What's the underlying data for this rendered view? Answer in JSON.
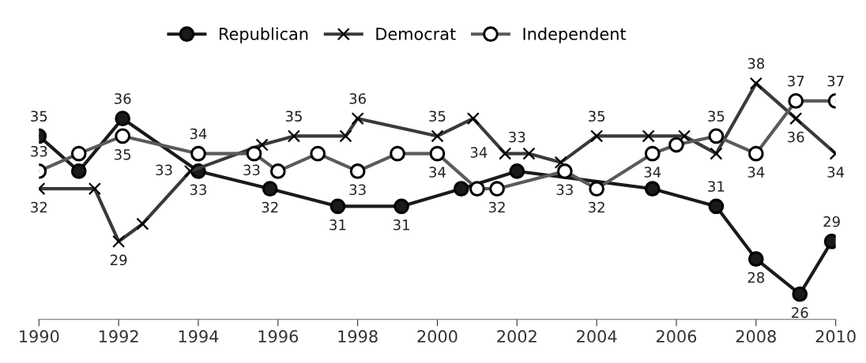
{
  "chart_data": {
    "type": "line",
    "xlim": [
      1990,
      2010
    ],
    "xticks": [
      1990,
      1992,
      1994,
      1996,
      1998,
      2000,
      2002,
      2004,
      2006,
      2008,
      2010
    ],
    "tick_labels": "x",
    "grid": false,
    "legend": "top",
    "series": [
      {
        "name": "Republican",
        "color": "#1a1a1a",
        "marker": "circle",
        "x": [
          1990,
          1991,
          1992.1,
          1994,
          1995.8,
          1997.5,
          1999.1,
          2000.6,
          2002,
          2005.4,
          2007,
          2008,
          2009.1,
          2009.9
        ],
        "values": [
          35,
          33,
          36,
          33,
          32,
          31,
          31,
          32,
          33,
          32,
          31,
          28,
          26,
          29
        ],
        "value_labels": [
          "35",
          null,
          "36",
          "33",
          "32",
          "31",
          "31",
          null,
          "33",
          null,
          "31",
          "28",
          "26",
          "29"
        ]
      },
      {
        "name": "Democrat",
        "color": "#3a3a3a",
        "marker": "cross",
        "x": [
          1990,
          1991.4,
          1992,
          1992.6,
          1993.8,
          1995.6,
          1996.4,
          1997.7,
          1998,
          2000,
          2000.9,
          2001.7,
          2002.3,
          2003.1,
          2004,
          2005.3,
          2006.2,
          2007,
          2008,
          2009,
          2010
        ],
        "values": [
          32,
          32,
          29,
          30,
          33,
          34.5,
          35,
          35,
          36,
          35,
          36,
          34,
          34,
          33.5,
          35,
          35,
          35,
          34,
          38,
          36,
          34
        ],
        "value_labels": [
          "32",
          null,
          "29",
          null,
          "33",
          null,
          "35",
          null,
          "36",
          "35",
          null,
          "34",
          null,
          null,
          "35",
          null,
          null,
          null,
          "38",
          "36",
          "34"
        ]
      },
      {
        "name": "Independent",
        "color": "#5a5a5a",
        "marker": "circle",
        "x": [
          1990,
          1991,
          1992.1,
          1994,
          1995.4,
          1996,
          1997,
          1998,
          1999,
          2000,
          2001,
          2001.5,
          2003.2,
          2004,
          2005.4,
          2006,
          2007,
          2008,
          2009,
          2010
        ],
        "values": [
          33,
          34,
          35,
          34,
          34,
          33,
          34,
          33,
          34,
          34,
          32,
          32,
          33,
          32,
          34,
          34.5,
          35,
          34,
          37,
          37
        ],
        "value_labels": [
          "33",
          null,
          "35",
          "34",
          null,
          "33",
          null,
          "33",
          null,
          "34",
          null,
          "32",
          "33",
          "32",
          "34",
          null,
          "35",
          "34",
          "37",
          "37"
        ]
      }
    ]
  }
}
